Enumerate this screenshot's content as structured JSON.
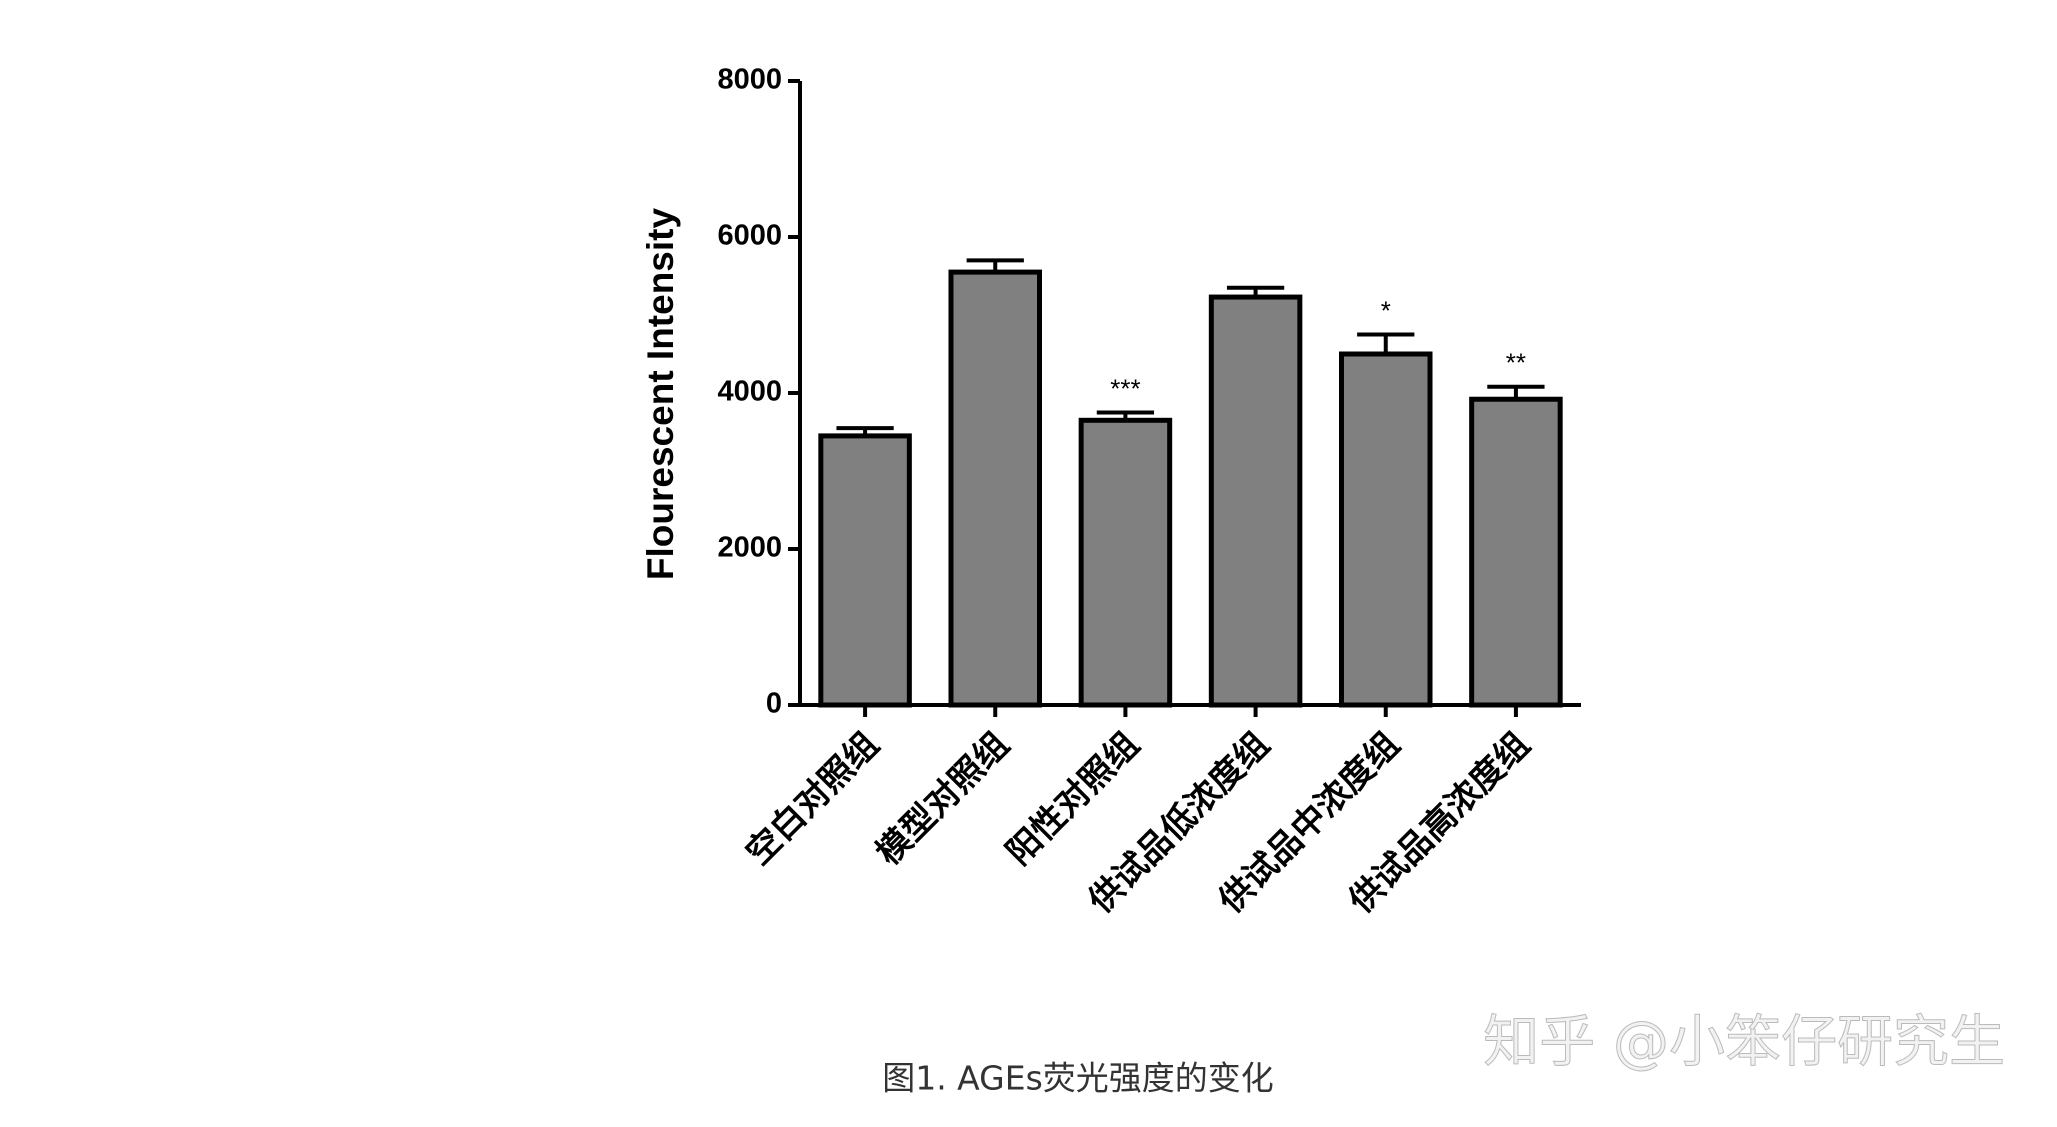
{
  "chart_data": {
    "type": "bar",
    "ylabel": "Flourescent Intensity",
    "categories": [
      "空白对照组",
      "模型对照组",
      "阳性对照组",
      "供试品低浓度组",
      "供试品中浓度组",
      "供试品高浓度组"
    ],
    "values": [
      3450,
      5550,
      3650,
      5230,
      4500,
      3920
    ],
    "errors": [
      100,
      150,
      100,
      120,
      250,
      160
    ],
    "annotations": [
      null,
      null,
      "***",
      null,
      "*",
      "**"
    ],
    "color": "#808080",
    "ylim": [
      0,
      8000
    ],
    "yticks": [
      0,
      2000,
      4000,
      6000,
      8000
    ],
    "grid": false
  },
  "caption": "图1. AGEs荧光强度的变化",
  "watermark": "知乎 @小笨仔研究生"
}
